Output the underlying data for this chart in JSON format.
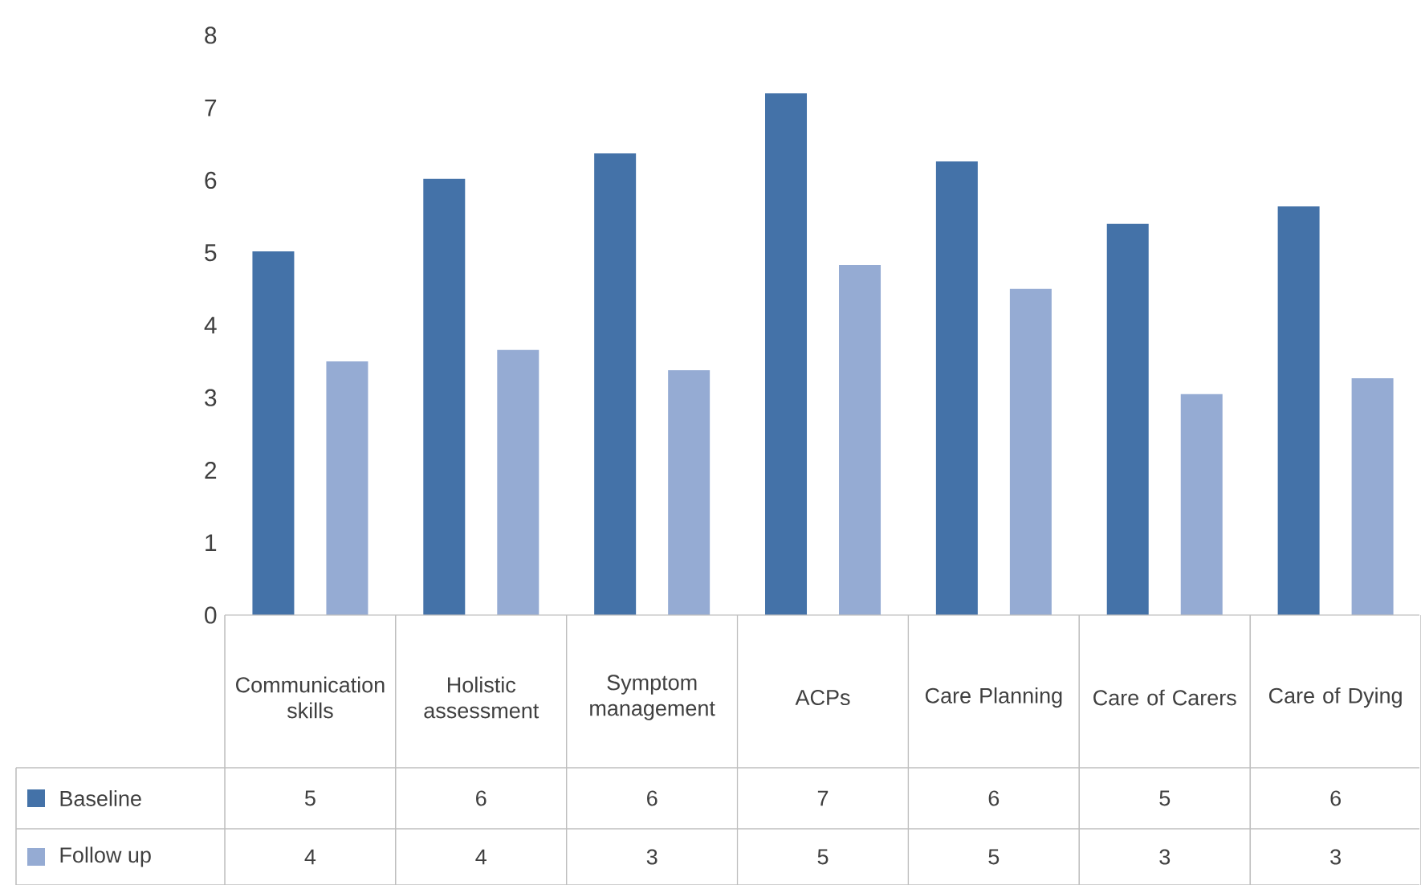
{
  "chart_data": {
    "type": "bar",
    "categories": [
      "Communication skills",
      "Holistic assessment",
      "Symptom management",
      "ACPs",
      "Care Planning",
      "Care of Carers",
      "Care of Dying"
    ],
    "series": [
      {
        "name": "Baseline",
        "color": "#4472a8",
        "values": [
          5.02,
          6.02,
          6.37,
          7.2,
          6.26,
          5.4,
          5.64
        ],
        "value_labels": [
          "5",
          "6",
          "6",
          "7",
          "6",
          "5",
          "6"
        ]
      },
      {
        "name": "Follow up",
        "color": "#95abd3",
        "values": [
          3.5,
          3.66,
          3.38,
          4.83,
          4.5,
          3.05,
          3.27
        ],
        "value_labels": [
          "4",
          "4",
          "3",
          "5",
          "5",
          "3",
          "3"
        ]
      }
    ],
    "ylim": [
      0,
      8
    ],
    "yticks": [
      0,
      1,
      2,
      3,
      4,
      5,
      6,
      7,
      8
    ],
    "grid": false,
    "legend": "bottom"
  }
}
